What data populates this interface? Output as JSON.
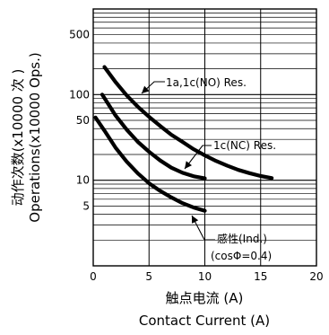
{
  "chart_data": {
    "type": "line",
    "xlabel_cn": "触点电流 (A)",
    "xlabel_en": "Contact Current (A)",
    "ylabel_cn": "动作次数(x10000 次 )",
    "ylabel_en": "Operations(x10000 Ops.)",
    "x_ticks": [
      "0",
      "5",
      "10",
      "15",
      "20"
    ],
    "y_ticks": [
      "500",
      "100",
      "50",
      "10",
      "5"
    ],
    "xlim": [
      0,
      20
    ],
    "ylim": [
      1,
      1000
    ],
    "y_scale": "log",
    "grid": true,
    "series": [
      {
        "name": "1a,1c(NO) Res.",
        "x": [
          1,
          2,
          3,
          4,
          5,
          6,
          7,
          8,
          9,
          10,
          11,
          12,
          13,
          14,
          15,
          16
        ],
        "y": [
          210,
          140,
          98,
          72,
          55,
          43,
          34,
          28,
          23,
          19.5,
          16.8,
          14.8,
          13.2,
          12.1,
          11.2,
          10.6
        ]
      },
      {
        "name": "1c(NC) Res.",
        "x": [
          0.8,
          2,
          3,
          4,
          5,
          6,
          7,
          8,
          9,
          10
        ],
        "y": [
          100,
          57,
          39,
          28,
          21.5,
          17,
          14,
          12.2,
          11.1,
          10.5
        ]
      },
      {
        "name": "感性(Ind.) (cosΦ=0.4)",
        "x": [
          0.2,
          1,
          2,
          3,
          4,
          5,
          6,
          7,
          8,
          9,
          10
        ],
        "y": [
          54,
          38,
          24,
          16.5,
          12,
          9.2,
          7.5,
          6.3,
          5.4,
          4.8,
          4.4
        ]
      }
    ],
    "annotations": [
      {
        "text": "1a,1c(NO) Res."
      },
      {
        "text": "1c(NC) Res."
      },
      {
        "text": "感性(Ind.)"
      },
      {
        "text": "(cosΦ=0.4)"
      }
    ]
  }
}
